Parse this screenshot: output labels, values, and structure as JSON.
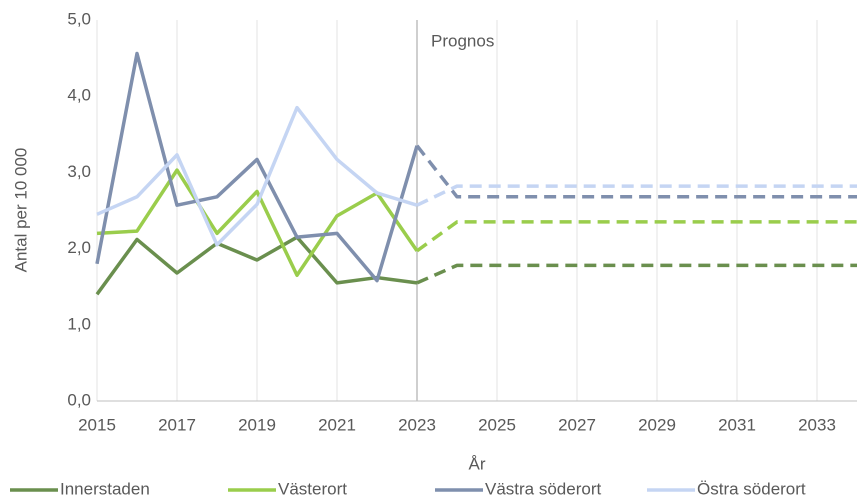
{
  "chart_data": {
    "type": "line",
    "y_label": "Antal per 10 000",
    "x_label": "År",
    "annotation": "Prognos",
    "forecast_start": 2023,
    "x": [
      2015,
      2016,
      2017,
      2018,
      2019,
      2020,
      2021,
      2022,
      2023,
      2024,
      2025,
      2026,
      2027,
      2028,
      2029,
      2030,
      2031,
      2032,
      2033,
      2034
    ],
    "xlim": [
      2015,
      2034
    ],
    "xticks": [
      2015,
      2017,
      2019,
      2021,
      2023,
      2025,
      2027,
      2029,
      2031,
      2033
    ],
    "ylim": [
      0,
      5
    ],
    "yticks": [
      {
        "value": 0,
        "label": "0,0"
      },
      {
        "value": 1,
        "label": "1,0"
      },
      {
        "value": 2,
        "label": "2,0"
      },
      {
        "value": 3,
        "label": "3,0"
      },
      {
        "value": 4,
        "label": "4,0"
      },
      {
        "value": 5,
        "label": "5,0"
      }
    ],
    "grid": true,
    "legend": "bottom",
    "series": [
      {
        "name": "Innerstaden",
        "color": "#6a8f4e",
        "values": [
          1.4,
          2.12,
          1.68,
          2.07,
          1.85,
          2.15,
          1.55,
          1.62,
          1.55,
          null,
          null,
          null,
          null,
          null,
          null,
          null,
          null,
          null,
          null,
          null
        ],
        "forecast": [
          null,
          null,
          null,
          null,
          null,
          null,
          null,
          null,
          1.55,
          1.78,
          1.78,
          1.78,
          1.78,
          1.78,
          1.78,
          1.78,
          1.78,
          1.78,
          1.78,
          1.78
        ]
      },
      {
        "name": "Västerort",
        "color": "#9acd4c",
        "values": [
          2.2,
          2.23,
          3.03,
          2.2,
          2.75,
          1.65,
          2.43,
          2.73,
          1.97,
          null,
          null,
          null,
          null,
          null,
          null,
          null,
          null,
          null,
          null,
          null
        ],
        "forecast": [
          null,
          null,
          null,
          null,
          null,
          null,
          null,
          null,
          1.97,
          2.35,
          2.35,
          2.35,
          2.35,
          2.35,
          2.35,
          2.35,
          2.35,
          2.35,
          2.35,
          2.35
        ]
      },
      {
        "name": "Västra söderort",
        "color": "#7f8fad",
        "values": [
          1.8,
          4.56,
          2.57,
          2.68,
          3.17,
          2.15,
          2.2,
          1.58,
          3.35,
          null,
          null,
          null,
          null,
          null,
          null,
          null,
          null,
          null,
          null,
          null
        ],
        "forecast": [
          null,
          null,
          null,
          null,
          null,
          null,
          null,
          null,
          3.35,
          2.68,
          2.68,
          2.68,
          2.68,
          2.68,
          2.68,
          2.68,
          2.68,
          2.68,
          2.68,
          2.68
        ]
      },
      {
        "name": "Östra söderort",
        "color": "#c5d5f3",
        "values": [
          2.45,
          2.68,
          3.23,
          2.05,
          2.58,
          3.85,
          3.17,
          2.73,
          2.57,
          null,
          null,
          null,
          null,
          null,
          null,
          null,
          null,
          null,
          null,
          null
        ],
        "forecast": [
          null,
          null,
          null,
          null,
          null,
          null,
          null,
          null,
          2.57,
          2.82,
          2.82,
          2.82,
          2.82,
          2.82,
          2.82,
          2.82,
          2.82,
          2.82,
          2.82,
          2.82
        ]
      }
    ]
  }
}
